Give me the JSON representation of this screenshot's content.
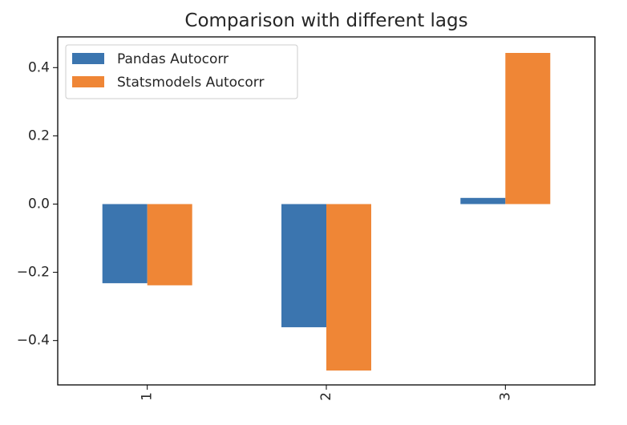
{
  "chart_data": {
    "type": "bar",
    "title": "Comparison with different lags",
    "xlabel": "",
    "ylabel": "",
    "categories": [
      "1",
      "2",
      "3"
    ],
    "series": [
      {
        "name": "Pandas Autocorr",
        "color": "#3b75af",
        "values": [
          -0.232,
          -0.361,
          0.018
        ]
      },
      {
        "name": "Statsmodels Autocorr",
        "color": "#ef8636",
        "values": [
          -0.238,
          -0.488,
          0.443
        ]
      }
    ],
    "yticks": [
      -0.4,
      -0.2,
      0.0,
      0.2,
      0.4
    ],
    "ytick_labels": [
      "−0.4",
      "−0.2",
      "0.0",
      "0.2",
      "0.4"
    ],
    "ylim": [
      -0.53,
      0.49
    ],
    "legend_position": "upper-left",
    "grid": false
  }
}
